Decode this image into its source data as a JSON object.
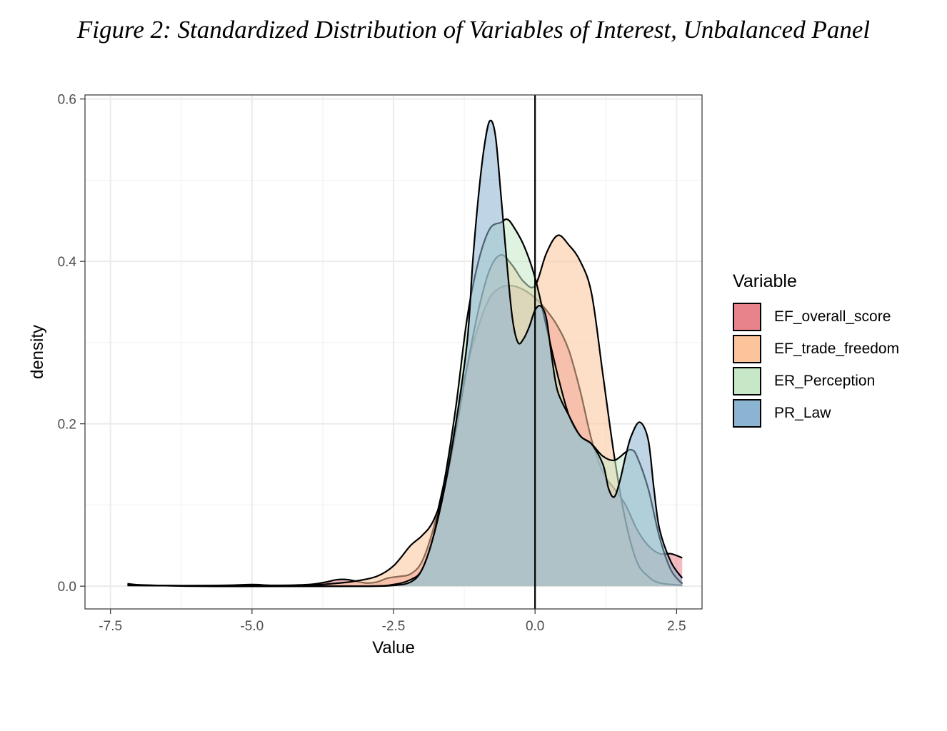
{
  "figure_title": "Figure 2: Standardized Distribution of Variables of Interest, Unbalanced Panel",
  "legend": {
    "title": "Variable",
    "items": [
      {
        "label": "EF_overall_score",
        "color": "#e8838c"
      },
      {
        "label": "EF_trade_freedom",
        "color": "#fbc49b"
      },
      {
        "label": "ER_Perception",
        "color": "#c6e8c6"
      },
      {
        "label": "PR_Law",
        "color": "#8bb3d2"
      }
    ]
  },
  "chart_data": {
    "type": "area",
    "title": "Figure 2: Standardized Distribution of Variables of Interest, Unbalanced Panel",
    "xlabel": "Value",
    "ylabel": "density",
    "xlim": [
      -7.95,
      2.95
    ],
    "ylim": [
      -0.028,
      0.605
    ],
    "x_ticks": [
      -7.5,
      -5.0,
      -2.5,
      0.0,
      2.5
    ],
    "x_tick_labels": [
      "-7.5",
      "-5.0",
      "-2.5",
      "0.0",
      "2.5"
    ],
    "y_ticks": [
      0.0,
      0.2,
      0.4,
      0.6
    ],
    "y_tick_labels": [
      "0.0",
      "0.2",
      "0.4",
      "0.6"
    ],
    "vline_x": 0.0,
    "grid": true,
    "legend_position": "right",
    "series": [
      {
        "name": "EF_overall_score",
        "color": "#e8838c",
        "points": [
          [
            -7.2,
            0.003
          ],
          [
            -6.8,
            0.001
          ],
          [
            -5.5,
            0.001
          ],
          [
            -5.0,
            0.002
          ],
          [
            -4.6,
            0.001
          ],
          [
            -4.0,
            0.002
          ],
          [
            -3.7,
            0.005
          ],
          [
            -3.5,
            0.008
          ],
          [
            -3.3,
            0.008
          ],
          [
            -3.0,
            0.004
          ],
          [
            -2.8,
            0.005
          ],
          [
            -2.6,
            0.01
          ],
          [
            -2.4,
            0.012
          ],
          [
            -2.2,
            0.015
          ],
          [
            -2.0,
            0.03
          ],
          [
            -1.8,
            0.07
          ],
          [
            -1.6,
            0.13
          ],
          [
            -1.4,
            0.2
          ],
          [
            -1.2,
            0.27
          ],
          [
            -1.0,
            0.32
          ],
          [
            -0.8,
            0.355
          ],
          [
            -0.6,
            0.368
          ],
          [
            -0.4,
            0.37
          ],
          [
            -0.2,
            0.365
          ],
          [
            0.0,
            0.355
          ],
          [
            0.2,
            0.34
          ],
          [
            0.4,
            0.32
          ],
          [
            0.6,
            0.29
          ],
          [
            0.8,
            0.24
          ],
          [
            1.0,
            0.18
          ],
          [
            1.2,
            0.14
          ],
          [
            1.4,
            0.12
          ],
          [
            1.6,
            0.1
          ],
          [
            1.8,
            0.07
          ],
          [
            2.0,
            0.05
          ],
          [
            2.2,
            0.04
          ],
          [
            2.4,
            0.04
          ],
          [
            2.6,
            0.035
          ]
        ]
      },
      {
        "name": "EF_trade_freedom",
        "color": "#fbc49b",
        "points": [
          [
            -7.2,
            0.002
          ],
          [
            -6.0,
            0.0
          ],
          [
            -4.5,
            0.0
          ],
          [
            -4.0,
            0.001
          ],
          [
            -3.6,
            0.003
          ],
          [
            -3.2,
            0.006
          ],
          [
            -2.8,
            0.012
          ],
          [
            -2.5,
            0.025
          ],
          [
            -2.2,
            0.05
          ],
          [
            -2.0,
            0.062
          ],
          [
            -1.8,
            0.08
          ],
          [
            -1.6,
            0.12
          ],
          [
            -1.4,
            0.19
          ],
          [
            -1.2,
            0.27
          ],
          [
            -1.0,
            0.34
          ],
          [
            -0.8,
            0.39
          ],
          [
            -0.6,
            0.408
          ],
          [
            -0.4,
            0.395
          ],
          [
            -0.2,
            0.375
          ],
          [
            0.0,
            0.37
          ],
          [
            0.2,
            0.41
          ],
          [
            0.4,
            0.432
          ],
          [
            0.6,
            0.42
          ],
          [
            0.8,
            0.4
          ],
          [
            1.0,
            0.36
          ],
          [
            1.2,
            0.26
          ],
          [
            1.4,
            0.16
          ],
          [
            1.6,
            0.08
          ],
          [
            1.8,
            0.03
          ],
          [
            2.0,
            0.012
          ],
          [
            2.2,
            0.004
          ],
          [
            2.6,
            0.001
          ]
        ]
      },
      {
        "name": "ER_Perception",
        "color": "#c6e8c6",
        "points": [
          [
            -7.2,
            0.001
          ],
          [
            -5.0,
            0.0
          ],
          [
            -3.0,
            0.0
          ],
          [
            -2.5,
            0.002
          ],
          [
            -2.2,
            0.008
          ],
          [
            -2.0,
            0.02
          ],
          [
            -1.8,
            0.06
          ],
          [
            -1.6,
            0.13
          ],
          [
            -1.4,
            0.22
          ],
          [
            -1.2,
            0.33
          ],
          [
            -1.0,
            0.4
          ],
          [
            -0.8,
            0.44
          ],
          [
            -0.6,
            0.448
          ],
          [
            -0.5,
            0.452
          ],
          [
            -0.4,
            0.445
          ],
          [
            -0.2,
            0.42
          ],
          [
            0.0,
            0.38
          ],
          [
            0.2,
            0.32
          ],
          [
            0.4,
            0.26
          ],
          [
            0.6,
            0.21
          ],
          [
            0.8,
            0.185
          ],
          [
            1.0,
            0.175
          ],
          [
            1.2,
            0.16
          ],
          [
            1.4,
            0.155
          ],
          [
            1.6,
            0.165
          ],
          [
            1.7,
            0.168
          ],
          [
            1.8,
            0.16
          ],
          [
            2.0,
            0.12
          ],
          [
            2.2,
            0.06
          ],
          [
            2.4,
            0.02
          ],
          [
            2.6,
            0.003
          ]
        ]
      },
      {
        "name": "PR_Law",
        "color": "#8bb3d2",
        "points": [
          [
            -7.2,
            0.001
          ],
          [
            -5.0,
            0.0
          ],
          [
            -3.0,
            0.0
          ],
          [
            -2.5,
            0.001
          ],
          [
            -2.2,
            0.005
          ],
          [
            -2.0,
            0.02
          ],
          [
            -1.8,
            0.06
          ],
          [
            -1.6,
            0.12
          ],
          [
            -1.4,
            0.2
          ],
          [
            -1.2,
            0.3
          ],
          [
            -1.1,
            0.4
          ],
          [
            -1.0,
            0.48
          ],
          [
            -0.9,
            0.54
          ],
          [
            -0.8,
            0.573
          ],
          [
            -0.7,
            0.555
          ],
          [
            -0.6,
            0.48
          ],
          [
            -0.5,
            0.4
          ],
          [
            -0.4,
            0.33
          ],
          [
            -0.3,
            0.3
          ],
          [
            -0.2,
            0.305
          ],
          [
            -0.1,
            0.32
          ],
          [
            0.0,
            0.34
          ],
          [
            0.1,
            0.345
          ],
          [
            0.2,
            0.33
          ],
          [
            0.3,
            0.28
          ],
          [
            0.4,
            0.24
          ],
          [
            0.6,
            0.21
          ],
          [
            0.8,
            0.185
          ],
          [
            1.0,
            0.175
          ],
          [
            1.2,
            0.15
          ],
          [
            1.3,
            0.12
          ],
          [
            1.4,
            0.11
          ],
          [
            1.5,
            0.13
          ],
          [
            1.6,
            0.16
          ],
          [
            1.7,
            0.185
          ],
          [
            1.85,
            0.202
          ],
          [
            2.0,
            0.18
          ],
          [
            2.1,
            0.12
          ],
          [
            2.2,
            0.07
          ],
          [
            2.4,
            0.03
          ],
          [
            2.6,
            0.01
          ]
        ]
      }
    ]
  }
}
